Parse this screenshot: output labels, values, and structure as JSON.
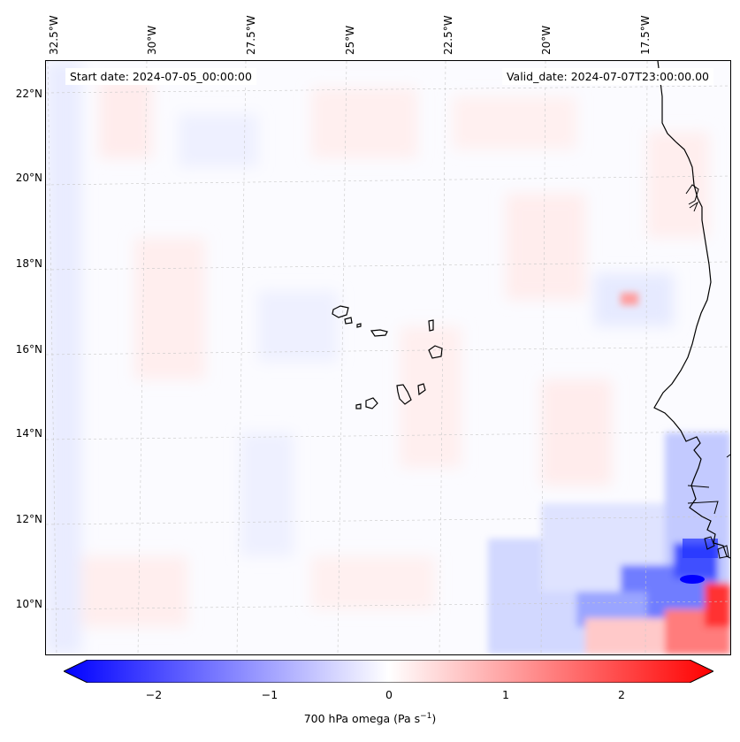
{
  "map": {
    "start_date": "Start date: 2024-07-05_00:00:00",
    "valid_date": "Valid_date: 2024-07-07T23:00:00.00",
    "longitude_labels": [
      "32.5°W",
      "30°W",
      "27.5°W",
      "25°W",
      "22.5°W",
      "20°W",
      "17.5°W"
    ],
    "latitude_labels": [
      "22°N",
      "20°N",
      "18°N",
      "16°N",
      "14°N",
      "12°N",
      "10°N"
    ]
  },
  "colorbar": {
    "ticks": [
      "−2",
      "−1",
      "0",
      "1",
      "2"
    ],
    "label_main": "700 hPa omega (Pa s",
    "label_exp": "−1",
    "label_close": ")",
    "min": -2.6,
    "max": 2.6,
    "low_color": "#0000ff",
    "mid_color": "#ffffff",
    "high_color": "#ff0000"
  },
  "colors": {
    "coastline": "#000000",
    "gridline": "#c8c8c8"
  }
}
